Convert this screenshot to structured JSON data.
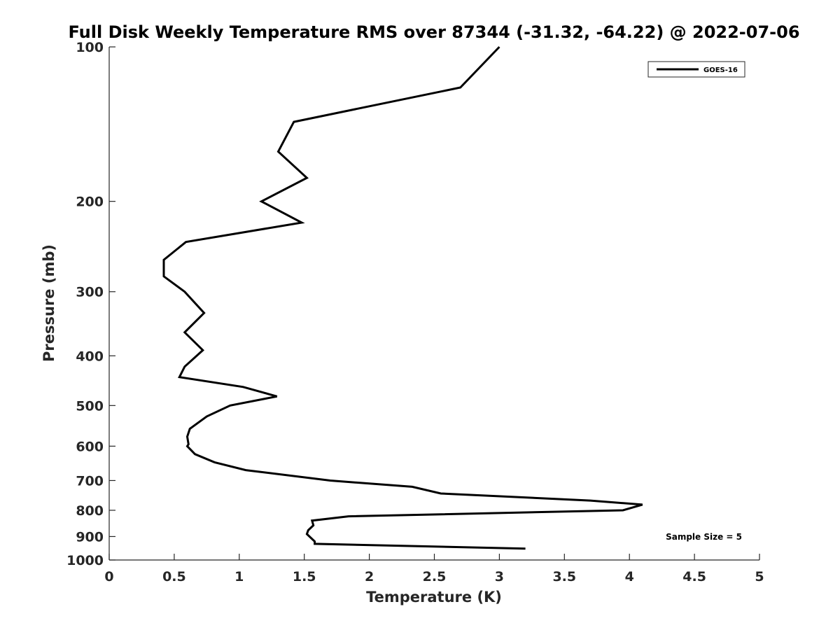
{
  "chart_data": {
    "type": "line",
    "title": "Full Disk Weekly Temperature RMS over 87344 (-31.32, -64.22) @ 2022-07-06",
    "xlabel": "Temperature (K)",
    "ylabel": "Pressure (mb)",
    "xlim": [
      0,
      5
    ],
    "ylim": [
      100,
      1000
    ],
    "y_scale": "log",
    "y_reversed": true,
    "x_ticks": [
      "0",
      "0.5",
      "1",
      "1.5",
      "2",
      "2.5",
      "3",
      "3.5",
      "4",
      "4.5",
      "5"
    ],
    "y_ticks": [
      "100",
      "200",
      "300",
      "400",
      "500",
      "600",
      "700",
      "800",
      "900",
      "1000"
    ],
    "grid": false,
    "legend": {
      "placement": "top-right",
      "entries": [
        "GOES-16"
      ]
    },
    "annotation": "Sample Size = 5",
    "series": [
      {
        "name": "GOES-16",
        "color": "#000000",
        "points": [
          [
            3.0,
            100
          ],
          [
            2.7,
            120
          ],
          [
            1.42,
            140
          ],
          [
            1.3,
            160
          ],
          [
            1.52,
            180
          ],
          [
            1.17,
            200
          ],
          [
            1.48,
            220
          ],
          [
            0.59,
            240
          ],
          [
            0.42,
            260
          ],
          [
            0.42,
            280
          ],
          [
            0.58,
            300
          ],
          [
            0.73,
            330
          ],
          [
            0.58,
            360
          ],
          [
            0.72,
            390
          ],
          [
            0.58,
            420
          ],
          [
            0.54,
            440
          ],
          [
            1.03,
            460
          ],
          [
            1.29,
            480
          ],
          [
            0.93,
            500
          ],
          [
            0.75,
            525
          ],
          [
            0.62,
            555
          ],
          [
            0.6,
            575
          ],
          [
            0.61,
            595
          ],
          [
            0.6,
            600
          ],
          [
            0.66,
            622
          ],
          [
            0.81,
            645
          ],
          [
            1.05,
            668
          ],
          [
            1.7,
            700
          ],
          [
            2.33,
            720
          ],
          [
            2.55,
            742
          ],
          [
            3.7,
            766
          ],
          [
            4.1,
            780
          ],
          [
            3.95,
            800
          ],
          [
            1.84,
            822
          ],
          [
            1.56,
            838
          ],
          [
            1.57,
            856
          ],
          [
            1.53,
            875
          ],
          [
            1.52,
            890
          ],
          [
            1.58,
            920
          ],
          [
            1.58,
            930
          ],
          [
            3.2,
            950
          ]
        ]
      }
    ]
  }
}
